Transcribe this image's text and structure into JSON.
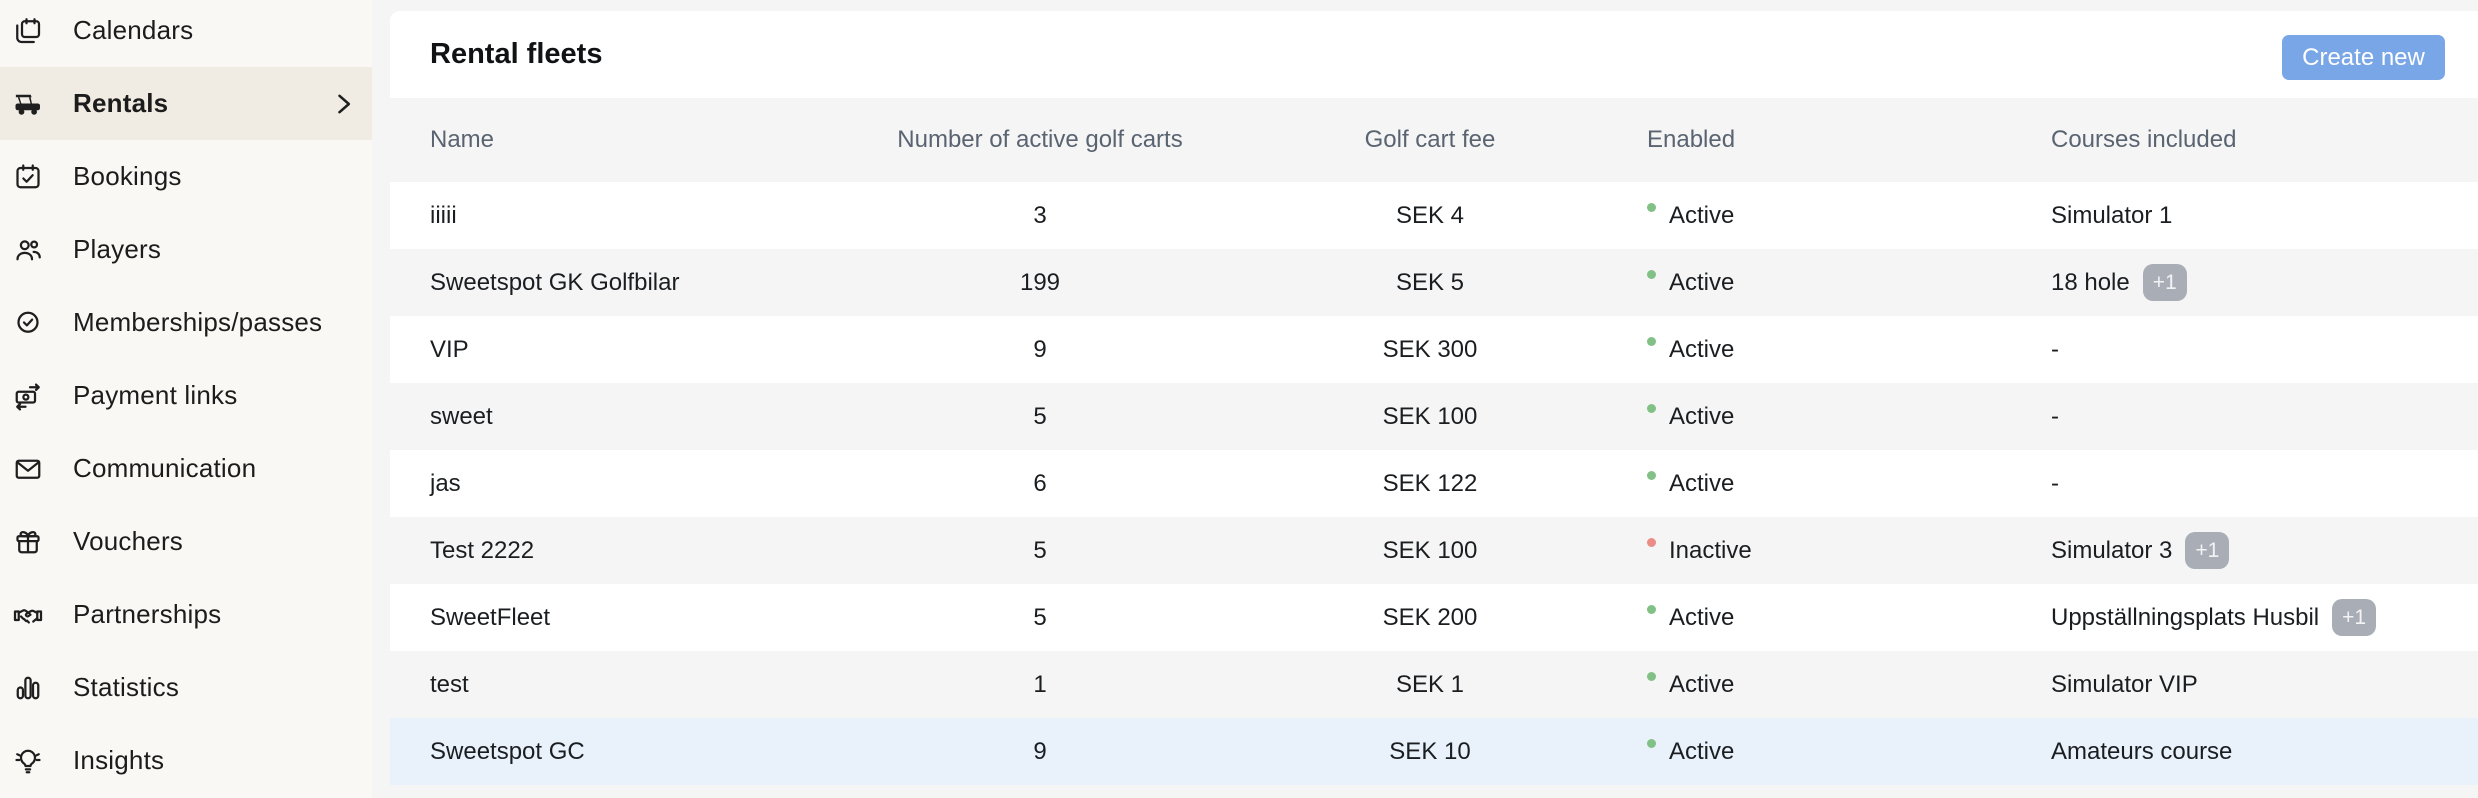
{
  "colors": {
    "page_bg": "#f5f5f6",
    "sidebar_bg": "#faf8f4",
    "sidebar_active_bg": "#f1ece3",
    "accent": "#79a6e6",
    "text": "#1b1e21",
    "header_text": "#5a6471",
    "status_active": "#82c185",
    "status_inactive": "#ec8c86",
    "badge_bg": "#a9aeb6",
    "row_highlight": "#e9f1fb"
  },
  "sidebar": {
    "items": [
      {
        "id": "calendars",
        "label": "Calendars",
        "icon": "calendars-icon",
        "active": false,
        "chevron": false
      },
      {
        "id": "rentals",
        "label": "Rentals",
        "icon": "golf-cart-icon",
        "active": true,
        "chevron": true
      },
      {
        "id": "bookings",
        "label": "Bookings",
        "icon": "calendar-check-icon",
        "active": false,
        "chevron": false
      },
      {
        "id": "players",
        "label": "Players",
        "icon": "players-icon",
        "active": false,
        "chevron": false
      },
      {
        "id": "memberships",
        "label": "Memberships/passes",
        "icon": "membership-badge-icon",
        "active": false,
        "chevron": false
      },
      {
        "id": "payment-links",
        "label": "Payment links",
        "icon": "payment-links-icon",
        "active": false,
        "chevron": false
      },
      {
        "id": "communication",
        "label": "Communication",
        "icon": "envelope-icon",
        "active": false,
        "chevron": false
      },
      {
        "id": "vouchers",
        "label": "Vouchers",
        "icon": "gift-icon",
        "active": false,
        "chevron": false
      },
      {
        "id": "partnerships",
        "label": "Partnerships",
        "icon": "handshake-icon",
        "active": false,
        "chevron": false
      },
      {
        "id": "statistics",
        "label": "Statistics",
        "icon": "bar-chart-icon",
        "active": false,
        "chevron": false
      },
      {
        "id": "insights",
        "label": "Insights",
        "icon": "lightbulb-icon",
        "active": false,
        "chevron": false
      }
    ]
  },
  "header": {
    "title": "Rental fleets",
    "create_button_label": "Create new"
  },
  "table": {
    "columns": [
      {
        "label": "Name"
      },
      {
        "label": "Number of active golf carts"
      },
      {
        "label": "Golf cart fee"
      },
      {
        "label": "Enabled"
      },
      {
        "label": "Courses included"
      }
    ],
    "rows": [
      {
        "name": "iiiii",
        "carts": "3",
        "fee": "SEK 4",
        "status": "active",
        "status_label": "Active",
        "courses": "Simulator 1",
        "badge": "",
        "highlighted": false
      },
      {
        "name": "Sweetspot GK Golfbilar",
        "carts": "199",
        "fee": "SEK 5",
        "status": "active",
        "status_label": "Active",
        "courses": "18 hole",
        "badge": "+1",
        "highlighted": false
      },
      {
        "name": "VIP",
        "carts": "9",
        "fee": "SEK 300",
        "status": "active",
        "status_label": "Active",
        "courses": "-",
        "badge": "",
        "highlighted": false
      },
      {
        "name": "sweet",
        "carts": "5",
        "fee": "SEK 100",
        "status": "active",
        "status_label": "Active",
        "courses": "-",
        "badge": "",
        "highlighted": false
      },
      {
        "name": "jas",
        "carts": "6",
        "fee": "SEK 122",
        "status": "active",
        "status_label": "Active",
        "courses": "-",
        "badge": "",
        "highlighted": false
      },
      {
        "name": "Test 2222",
        "carts": "5",
        "fee": "SEK 100",
        "status": "inactive",
        "status_label": "Inactive",
        "courses": "Simulator 3",
        "badge": "+1",
        "highlighted": false
      },
      {
        "name": "SweetFleet",
        "carts": "5",
        "fee": "SEK 200",
        "status": "active",
        "status_label": "Active",
        "courses": "Uppställningsplats Husbil",
        "badge": "+1",
        "highlighted": false
      },
      {
        "name": "test",
        "carts": "1",
        "fee": "SEK 1",
        "status": "active",
        "status_label": "Active",
        "courses": "Simulator VIP",
        "badge": "",
        "highlighted": false
      },
      {
        "name": "Sweetspot GC",
        "carts": "9",
        "fee": "SEK 10",
        "status": "active",
        "status_label": "Active",
        "courses": "Amateurs course",
        "badge": "",
        "highlighted": true
      }
    ]
  }
}
